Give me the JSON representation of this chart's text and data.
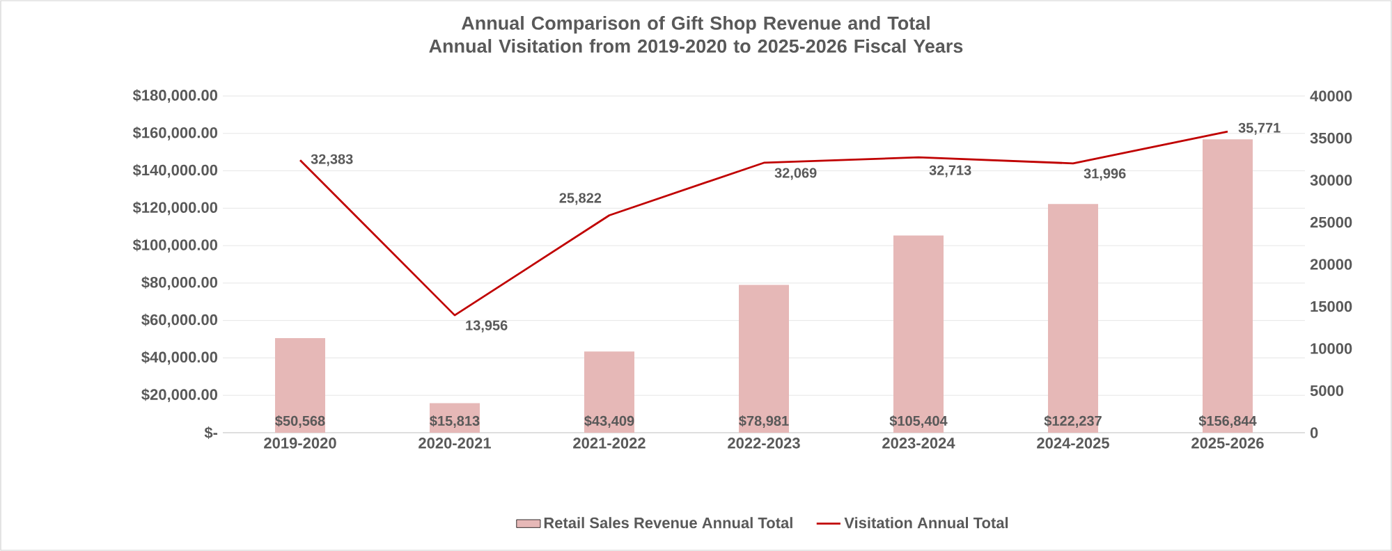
{
  "chart_data": {
    "type": "bar",
    "title": "Annual Comparison of Gift Shop Revenue and Total Annual Visitation from 2019-2020 to 2025-2026 Fiscal Years",
    "categories": [
      "2019-2020",
      "2020-2021",
      "2021-2022",
      "2022-2023",
      "2023-2024",
      "2024-2025",
      "2025-2026"
    ],
    "series": [
      {
        "name": "Retail Sales Revenue Annual Total",
        "color": "#e6b8b7",
        "values": [
          50568,
          15813,
          43409,
          78981,
          105404,
          122237,
          156844
        ],
        "value_labels": [
          "$50,568",
          "$15,813",
          "$43,409",
          "$78,981",
          "$105,404",
          "$122,237",
          "$156,844"
        ]
      },
      {
        "name": "Visitation Annual Total",
        "type": "line",
        "axis": "y2",
        "color": "#c00000",
        "values": [
          32383,
          13956,
          25822,
          32069,
          32713,
          31996,
          35771
        ],
        "value_labels": [
          "32,383",
          "13,956",
          "25,822",
          "32,069",
          "32,713",
          "31,996",
          "35,771"
        ]
      }
    ],
    "ylim": [
      0,
      180000
    ],
    "yticks": [
      {
        "value": 0,
        "label": "$-"
      },
      {
        "value": 20000,
        "label": "$20,000.00"
      },
      {
        "value": 40000,
        "label": "$40,000.00"
      },
      {
        "value": 60000,
        "label": "$60,000.00"
      },
      {
        "value": 80000,
        "label": "$80,000.00"
      },
      {
        "value": 100000,
        "label": "$100,000.00"
      },
      {
        "value": 120000,
        "label": "$120,000.00"
      },
      {
        "value": 140000,
        "label": "$140,000.00"
      },
      {
        "value": 160000,
        "label": "$160,000.00"
      },
      {
        "value": 180000,
        "label": "$180,000.00"
      }
    ],
    "y2lim": [
      0,
      40000
    ],
    "y2ticks": [
      0,
      5000,
      10000,
      15000,
      20000,
      25000,
      30000,
      35000,
      40000
    ],
    "grid": "y",
    "legend": "bottom"
  }
}
